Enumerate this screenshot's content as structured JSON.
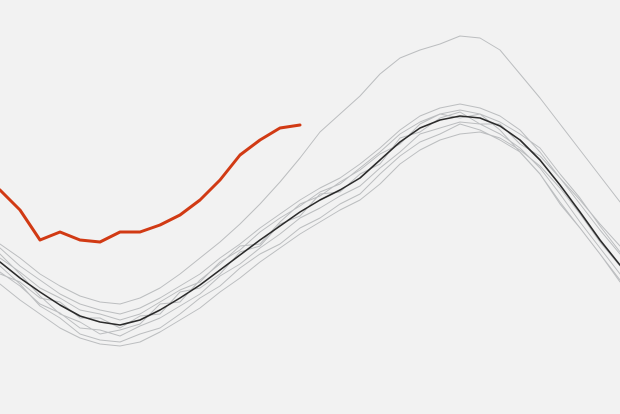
{
  "chart_data": {
    "type": "line",
    "categories": [
      null,
      null,
      null,
      null,
      null,
      null,
      null,
      null,
      null,
      null,
      null,
      null,
      null,
      null,
      null,
      null,
      null,
      null,
      null,
      null,
      null,
      null,
      null,
      null,
      null,
      null,
      null,
      null,
      null,
      null,
      null,
      null
    ],
    "ylim": [
      0,
      414
    ],
    "series": [
      {
        "color": "#bcbec0",
        "linewidth": 1,
        "values": [
          142,
          128,
          110,
          101,
          86,
          84,
          78,
          88,
          96,
          108,
          120,
          138,
          150,
          166,
          180,
          196,
          206,
          218,
          228,
          246,
          262,
          280,
          286,
          292,
          290,
          280,
          266,
          246,
          220,
          192,
          166,
          140
        ]
      },
      {
        "color": "#bcbec0",
        "linewidth": 1,
        "values": [
          166,
          148,
          134,
          120,
          110,
          104,
          100,
          106,
          116,
          128,
          140,
          156,
          170,
          186,
          200,
          214,
          226,
          236,
          250,
          266,
          284,
          298,
          306,
          310,
          306,
          298,
          284,
          262,
          236,
          210,
          184,
          160
        ]
      },
      {
        "color": "#bcbec0",
        "linewidth": 1,
        "values": [
          130,
          114,
          100,
          86,
          76,
          70,
          68,
          72,
          82,
          94,
          106,
          122,
          136,
          152,
          166,
          180,
          192,
          204,
          214,
          230,
          250,
          264,
          274,
          280,
          282,
          276,
          264,
          248,
          226,
          200,
          172,
          148
        ]
      },
      {
        "color": "#bcbec0",
        "linewidth": 1,
        "values": [
          160,
          140,
          118,
          100,
          92,
          80,
          84,
          90,
          110,
          112,
          134,
          150,
          168,
          170,
          192,
          210,
          218,
          232,
          244,
          260,
          270,
          290,
          300,
          296,
          300,
          284,
          262,
          240,
          210,
          186,
          160,
          132
        ]
      },
      {
        "color": "#bcbec0",
        "linewidth": 1,
        "values": [
          140,
          132,
          116,
          112,
          96,
          96,
          86,
          98,
          100,
          122,
          126,
          140,
          162,
          168,
          190,
          198,
          220,
          222,
          240,
          250,
          276,
          282,
          296,
          302,
          290,
          290,
          270,
          258,
          236,
          214,
          190,
          168
        ]
      },
      {
        "color": "#bcbec0",
        "linewidth": 1,
        "values": [
          170,
          156,
          140,
          128,
          118,
          112,
          110,
          116,
          126,
          140,
          156,
          172,
          190,
          210,
          232,
          256,
          282,
          300,
          318,
          340,
          356,
          364,
          370,
          378,
          376,
          364,
          340,
          316,
          290,
          264,
          238,
          212
        ]
      },
      {
        "color": "#bcbec0",
        "linewidth": 1,
        "values": [
          148,
          130,
          108,
          96,
          80,
          74,
          72,
          80,
          86,
          100,
          116,
          128,
          146,
          160,
          170,
          186,
          196,
          210,
          220,
          240,
          258,
          272,
          280,
          290,
          284,
          274,
          262,
          240,
          212,
          186,
          160,
          134
        ]
      },
      {
        "color": "#bcbec0",
        "linewidth": 1,
        "values": [
          156,
          142,
          126,
          116,
          104,
          100,
          94,
          100,
          112,
          124,
          132,
          152,
          164,
          182,
          196,
          208,
          222,
          230,
          246,
          262,
          280,
          292,
          300,
          304,
          300,
          292,
          280,
          266,
          240,
          216,
          188,
          162
        ]
      },
      {
        "color": "#2b2b2b",
        "linewidth": 1.6,
        "values": [
          152,
          136,
          122,
          109,
          98,
          92,
          89,
          94,
          104,
          116,
          129,
          144,
          159,
          174,
          188,
          202,
          214,
          224,
          236,
          254,
          272,
          286,
          294,
          298,
          296,
          288,
          274,
          254,
          229,
          202,
          174,
          149
        ]
      },
      {
        "color": "#d13a14",
        "linewidth": 3,
        "values": [
          224,
          204,
          174,
          182,
          174,
          172,
          182,
          182,
          189,
          199,
          214,
          234,
          259,
          274,
          286,
          289,
          null,
          null,
          null,
          null,
          null,
          null,
          null,
          null,
          null,
          null,
          null,
          null,
          null,
          null,
          null,
          null
        ]
      }
    ]
  }
}
